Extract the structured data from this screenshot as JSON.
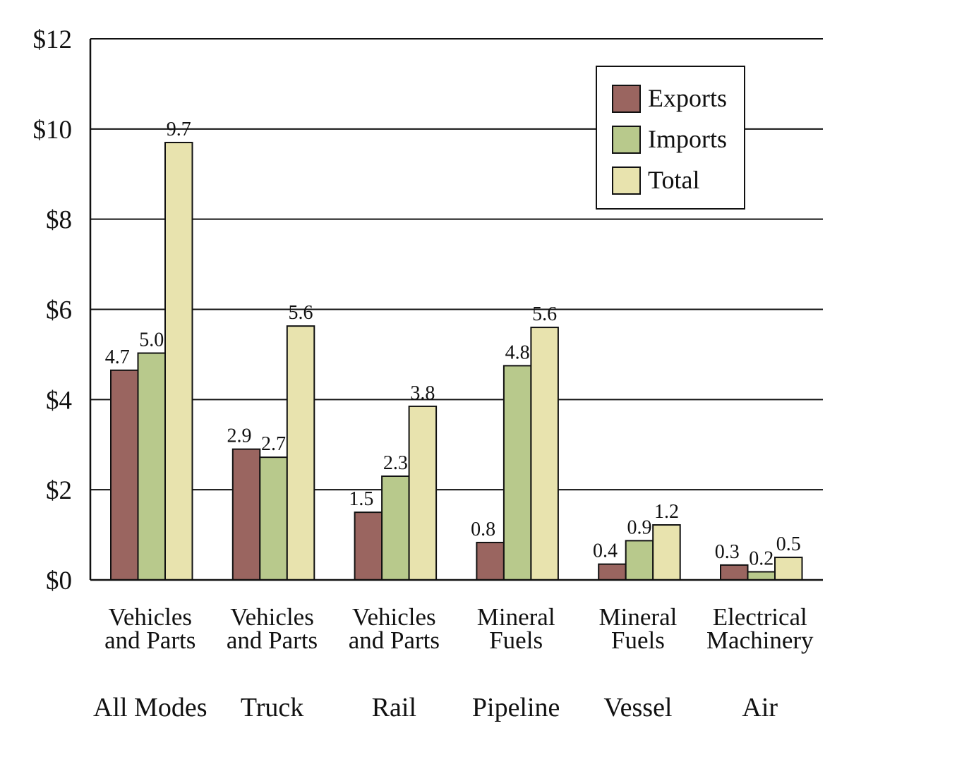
{
  "chart_data": {
    "type": "bar",
    "groups": [
      {
        "category": [
          "Vehicles",
          "and Parts"
        ],
        "mode": "All Modes"
      },
      {
        "category": [
          "Vehicles",
          "and Parts"
        ],
        "mode": "Truck"
      },
      {
        "category": [
          "Vehicles",
          "and Parts"
        ],
        "mode": "Rail"
      },
      {
        "category": [
          "Mineral",
          "Fuels"
        ],
        "mode": "Pipeline"
      },
      {
        "category": [
          "Mineral",
          "Fuels"
        ],
        "mode": "Vessel"
      },
      {
        "category": [
          "Electrical",
          "Machinery"
        ],
        "mode": "Air"
      }
    ],
    "series": [
      {
        "name": "Exports",
        "color": "#9a6560",
        "values": [
          4.65,
          2.9,
          1.5,
          0.83,
          0.35,
          0.33
        ],
        "labels": [
          "4.7",
          "2.9",
          "1.5",
          "0.8",
          "0.4",
          "0.3"
        ]
      },
      {
        "name": "Imports",
        "color": "#b8c98c",
        "values": [
          5.03,
          2.72,
          2.3,
          4.75,
          0.87,
          0.18
        ],
        "labels": [
          "5.0",
          "2.7",
          "2.3",
          "4.8",
          "0.9",
          "0.2"
        ]
      },
      {
        "name": "Total",
        "color": "#e8e3ae",
        "values": [
          9.7,
          5.63,
          3.85,
          5.6,
          1.22,
          0.5
        ],
        "labels": [
          "9.7",
          "5.6",
          "3.8",
          "5.6",
          "1.2",
          "0.5"
        ]
      }
    ],
    "ylim": [
      0,
      12
    ],
    "yticks": [
      0,
      2,
      4,
      6,
      8,
      10,
      12
    ],
    "ytick_labels": [
      "$0",
      "$2",
      "$4",
      "$6",
      "$8",
      "$10",
      "$12"
    ],
    "grid": true,
    "legend_position": "top-right"
  }
}
